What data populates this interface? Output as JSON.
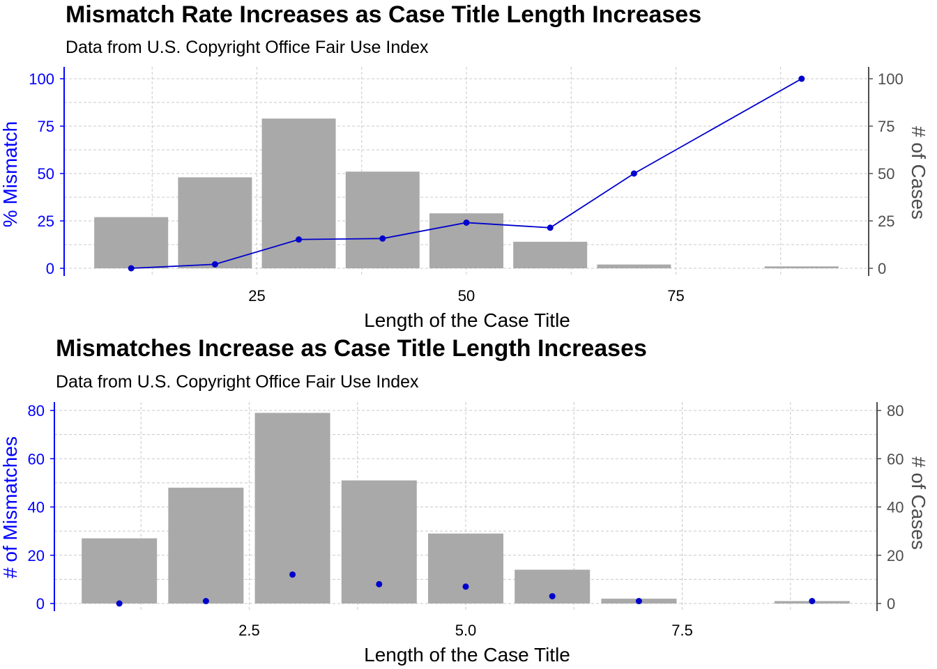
{
  "colors": {
    "left_axis": "#0000FF",
    "right_axis": "#4D4D4D",
    "bar": "#A9A9A9",
    "line": "#0000CD",
    "point": "#0000CD",
    "grid": "#C8C8C8"
  },
  "chart_data": [
    {
      "type": "bar",
      "title": "Mismatch Rate Increases as Case Title Length Increases",
      "subtitle": "Data from U.S. Copyright Office Fair Use Index",
      "xlabel": "Length of the Case Title",
      "ylabel_left": "% Mismatch",
      "ylabel_right": "# of Cases",
      "xlim": [
        2,
        98
      ],
      "ylim": [
        0,
        100
      ],
      "x_ticks": [
        {
          "v": 25,
          "label": "25"
        },
        {
          "v": 50,
          "label": "50"
        },
        {
          "v": 75,
          "label": "75"
        }
      ],
      "y_ticks_left": [
        "0",
        "25",
        "50",
        "75",
        "100"
      ],
      "y_ticks_right": [
        "0",
        "25",
        "50",
        "75",
        "100"
      ],
      "y_tick_values": [
        0,
        25,
        50,
        75,
        100
      ],
      "grid": true,
      "series": [
        {
          "name": "# of Cases",
          "type": "bar",
          "x": [
            10,
            20,
            30,
            40,
            50,
            60,
            70,
            90
          ],
          "values": [
            27,
            48,
            79,
            51,
            29,
            14,
            2,
            1
          ]
        },
        {
          "name": "% Mismatch",
          "type": "line",
          "x": [
            10,
            20,
            30,
            40,
            50,
            60,
            70,
            90
          ],
          "values": [
            0,
            2.1,
            15.2,
            15.7,
            24.1,
            21.4,
            50,
            100
          ]
        }
      ]
    },
    {
      "type": "bar",
      "title": "Mismatches Increase as Case Title Length Increases",
      "subtitle": "Data from U.S. Copyright Office Fair Use Index",
      "xlabel": "Length of the Case Title",
      "ylabel_left": "# of Mismatches",
      "ylabel_right": "# of Cases",
      "xlim": [
        0.25,
        9.75
      ],
      "ylim": [
        0,
        80
      ],
      "x_ticks": [
        {
          "v": 2.5,
          "label": "2.5"
        },
        {
          "v": 5.0,
          "label": "5.0"
        },
        {
          "v": 7.5,
          "label": "7.5"
        }
      ],
      "y_ticks_left": [
        "0",
        "20",
        "40",
        "60",
        "80"
      ],
      "y_ticks_right": [
        "0",
        "20",
        "40",
        "60",
        "80"
      ],
      "y_tick_values": [
        0,
        20,
        40,
        60,
        80
      ],
      "grid": true,
      "series": [
        {
          "name": "# of Cases",
          "type": "bar",
          "x": [
            1,
            2,
            3,
            4,
            5,
            6,
            7,
            9
          ],
          "values": [
            27,
            48,
            79,
            51,
            29,
            14,
            2,
            1
          ]
        },
        {
          "name": "# of Mismatches",
          "type": "scatter",
          "x": [
            1,
            2,
            3,
            4,
            5,
            6,
            7,
            9
          ],
          "values": [
            0,
            1,
            12,
            8,
            7,
            3,
            1,
            1
          ]
        }
      ]
    }
  ]
}
